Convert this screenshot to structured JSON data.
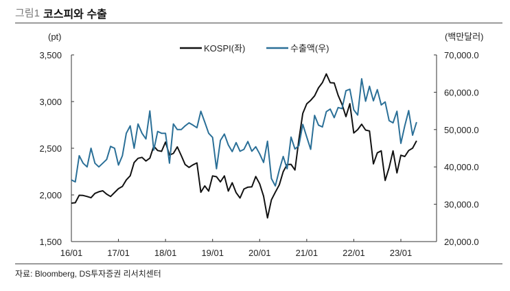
{
  "header": {
    "figure_no": "그림1",
    "title": "코스피와 수출"
  },
  "source": "자료: Bloomberg, DS투자증권 리서치센터",
  "chart_data": {
    "type": "line",
    "title": "코스피와 수출",
    "left_unit": "(pt)",
    "right_unit": "(백만달러)",
    "ylim_left": [
      1500,
      3500
    ],
    "yticks_left": [
      "3,500",
      "3,000",
      "2,500",
      "2,000",
      "1,500"
    ],
    "yticks_left_values": [
      3500,
      3000,
      2500,
      2000,
      1500
    ],
    "ylim_right": [
      20000,
      70000
    ],
    "yticks_right": [
      "70,000.0",
      "60,000.0",
      "50,000.0",
      "40,000.0",
      "30,000.0",
      "20,000.0"
    ],
    "yticks_right_values": [
      70000,
      60000,
      50000,
      40000,
      30000,
      20000
    ],
    "xticks": [
      "16/01",
      "17/01",
      "18/01",
      "19/01",
      "20/01",
      "21/01",
      "22/01",
      "23/01"
    ],
    "x_start": "2016-01",
    "x_step": "month",
    "legend_position": "top-center",
    "series": [
      {
        "name": "KOSPI(좌)",
        "axis": "left",
        "color": "#111111",
        "values": [
          1912,
          1916,
          1996,
          1994,
          1983,
          1970,
          2016,
          2034,
          2044,
          2008,
          1983,
          2026,
          2067,
          2091,
          2160,
          2205,
          2347,
          2392,
          2402,
          2363,
          2394,
          2523,
          2476,
          2467,
          2566,
          2427,
          2445,
          2515,
          2423,
          2326,
          2295,
          2322,
          2343,
          2029,
          2096,
          2041,
          2204,
          2195,
          2140,
          2204,
          2041,
          2130,
          2024,
          1967,
          2063,
          2083,
          2087,
          2197,
          2119,
          1987,
          1754,
          1947,
          2029,
          2108,
          2249,
          2326,
          2327,
          2267,
          2591,
          2873,
          2976,
          3013,
          3061,
          3147,
          3203,
          3296,
          3202,
          3199,
          3068,
          2970,
          2839,
          2977,
          2663,
          2699,
          2757,
          2695,
          2685,
          2332,
          2451,
          2472,
          2155,
          2293,
          2472,
          2236,
          2425,
          2412,
          2476,
          2501,
          2580
        ]
      },
      {
        "name": "수출액(우)",
        "axis": "right",
        "color": "#2a6f97",
        "values": [
          36500,
          36000,
          43000,
          41000,
          40000,
          45000,
          41000,
          40000,
          41000,
          42000,
          45500,
          45000,
          40500,
          43000,
          49000,
          51000,
          45000,
          51500,
          49000,
          47500,
          55000,
          44500,
          49500,
          49000,
          49000,
          41000,
          51500,
          50000,
          50000,
          51000,
          51800,
          51200,
          50500,
          54900,
          52000,
          49000,
          47900,
          39500,
          47100,
          48800,
          45900,
          44100,
          46500,
          44200,
          44700,
          46800,
          44200,
          45400,
          43500,
          41200,
          46900,
          36900,
          34900,
          39200,
          42800,
          39500,
          48000,
          44800,
          45700,
          51400,
          48000,
          44700,
          53800,
          51200,
          50700,
          54800,
          55500,
          53200,
          55900,
          55600,
          60400,
          60800,
          55300,
          53900,
          63600,
          57600,
          61600,
          57700,
          60700,
          56600,
          57400,
          52400,
          51800,
          54900,
          46300,
          51000,
          55100,
          48500,
          52000
        ]
      }
    ]
  }
}
